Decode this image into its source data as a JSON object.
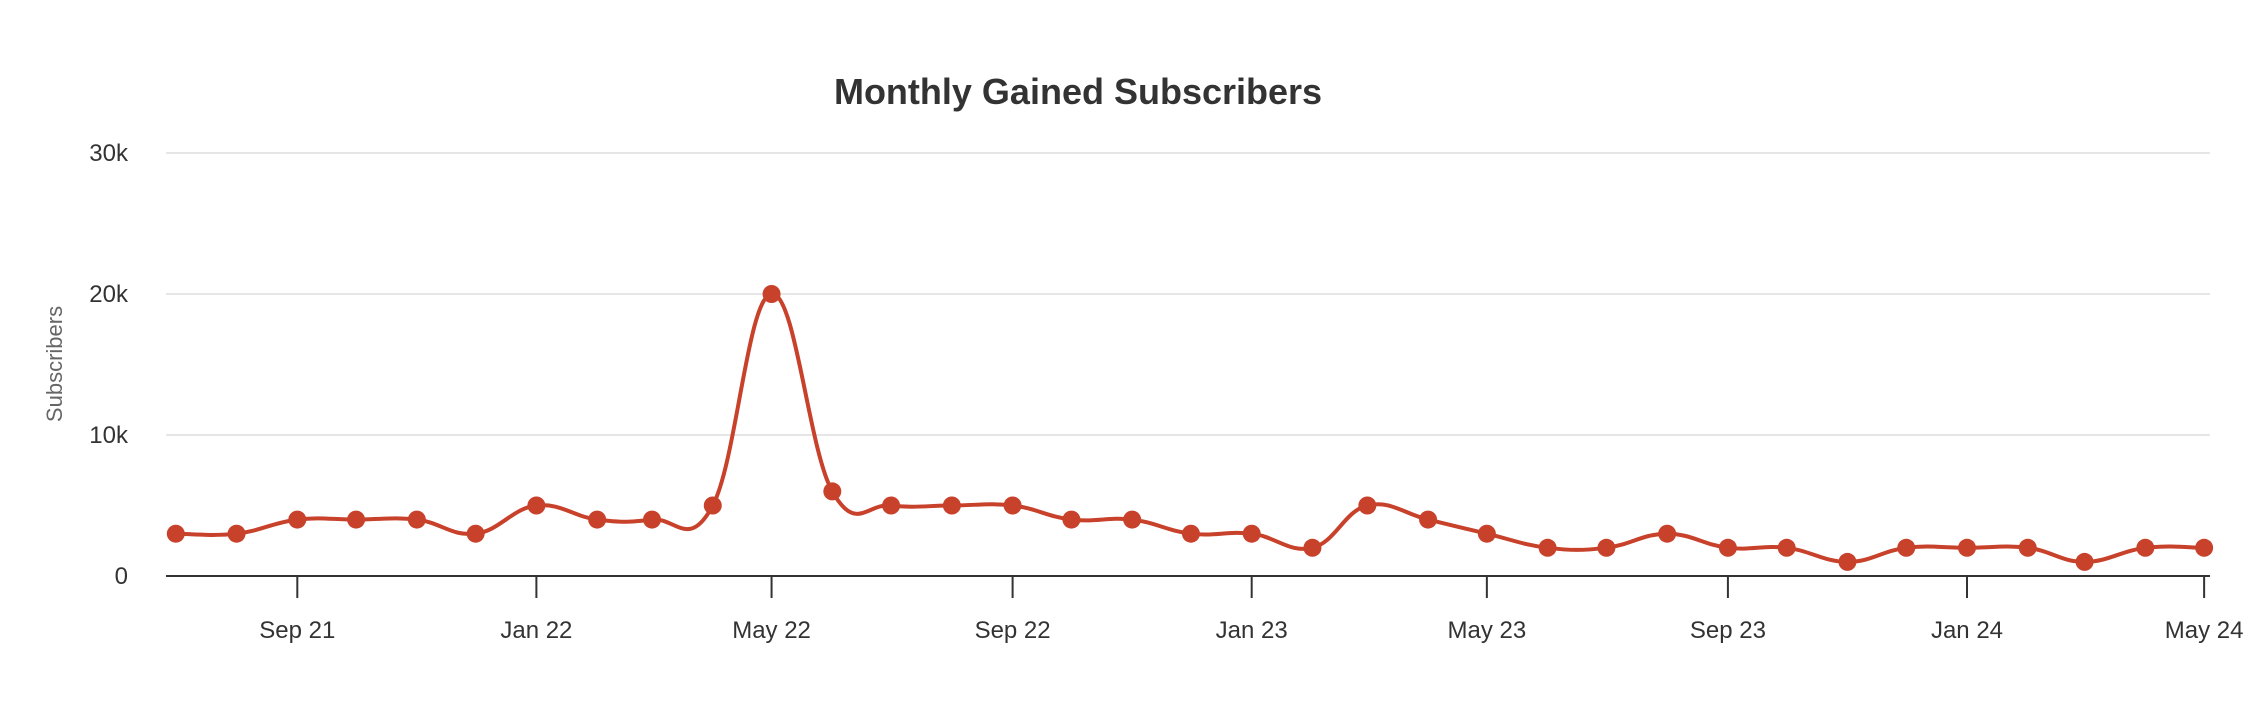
{
  "chart_data": {
    "type": "line",
    "title": "Monthly Gained Subscribers",
    "xlabel": "",
    "ylabel": "Subscribers",
    "ylim": [
      0,
      30000
    ],
    "yticks": [
      {
        "value": 0,
        "label": "0"
      },
      {
        "value": 10000,
        "label": "10k"
      },
      {
        "value": 20000,
        "label": "20k"
      },
      {
        "value": 30000,
        "label": "30k"
      }
    ],
    "xticks": [
      {
        "date": "2021-09",
        "label": "Sep 21"
      },
      {
        "date": "2022-01",
        "label": "Jan 22"
      },
      {
        "date": "2022-05",
        "label": "May 22"
      },
      {
        "date": "2022-09",
        "label": "Sep 22"
      },
      {
        "date": "2023-01",
        "label": "Jan 23"
      },
      {
        "date": "2023-05",
        "label": "May 23"
      },
      {
        "date": "2023-09",
        "label": "Sep 23"
      },
      {
        "date": "2024-01",
        "label": "Jan 24"
      },
      {
        "date": "2024-05",
        "label": "May 24"
      }
    ],
    "x": [
      "2021-07-01",
      "2021-08-01",
      "2021-09-01",
      "2021-10-01",
      "2021-11-01",
      "2021-12-01",
      "2022-01-01",
      "2022-02-01",
      "2022-03-01",
      "2022-04-01",
      "2022-05-01",
      "2022-06-01",
      "2022-07-01",
      "2022-08-01",
      "2022-09-01",
      "2022-10-01",
      "2022-11-01",
      "2022-12-01",
      "2023-01-01",
      "2023-02-01",
      "2023-03-01",
      "2023-04-01",
      "2023-05-01",
      "2023-06-01",
      "2023-07-01",
      "2023-08-01",
      "2023-09-01",
      "2023-10-01",
      "2023-11-01",
      "2023-12-01",
      "2024-01-01",
      "2024-02-01",
      "2024-03-01",
      "2024-04-01",
      "2024-05-01"
    ],
    "series": [
      {
        "values": [
          3000,
          3000,
          4000,
          4000,
          4000,
          3000,
          5000,
          4000,
          4000,
          5000,
          20000,
          6000,
          5000,
          5000,
          5000,
          4000,
          4000,
          3000,
          3000,
          2000,
          5000,
          4000,
          3000,
          2000,
          2000,
          3000,
          2000,
          2000,
          1000,
          2000,
          2000,
          2000,
          1000,
          2000,
          2000
        ],
        "color": "#c8412b"
      }
    ],
    "grid": true,
    "legend": "none"
  }
}
